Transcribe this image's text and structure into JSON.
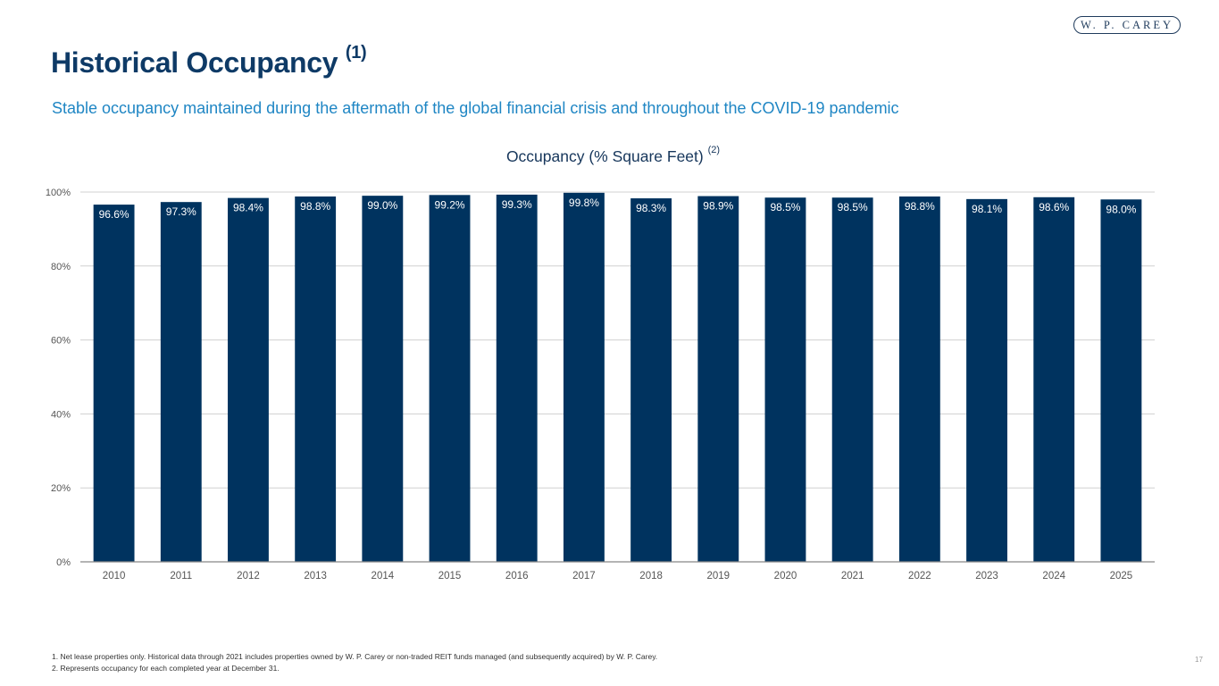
{
  "logo": {
    "text": "W. P. CAREY"
  },
  "header": {
    "title": "Historical Occupancy",
    "title_footnote": "(1)",
    "subtitle": "Stable occupancy maintained during the aftermath of the global financial crisis and throughout the COVID-19 pandemic"
  },
  "colors": {
    "bar": "#00335f",
    "title": "#0e3a66",
    "subtitle": "#1f86c4",
    "grid": "#d0d0d0",
    "axis": "#888888"
  },
  "chart_data": {
    "type": "bar",
    "title": "Occupancy (% Square Feet)",
    "title_footnote": "(2)",
    "xlabel": "",
    "ylabel": "",
    "categories": [
      "2010",
      "2011",
      "2012",
      "2013",
      "2014",
      "2015",
      "2016",
      "2017",
      "2018",
      "2019",
      "2020",
      "2021",
      "2022",
      "2023",
      "2024",
      "2025"
    ],
    "values": [
      96.6,
      97.3,
      98.4,
      98.8,
      99.0,
      99.2,
      99.3,
      99.8,
      98.3,
      98.9,
      98.5,
      98.5,
      98.8,
      98.1,
      98.6,
      98.0
    ],
    "data_labels": [
      "96.6%",
      "97.3%",
      "98.4%",
      "98.8%",
      "99.0%",
      "99.2%",
      "99.3%",
      "99.8%",
      "98.3%",
      "98.9%",
      "98.5%",
      "98.5%",
      "98.8%",
      "98.1%",
      "98.6%",
      "98.0%"
    ],
    "ylim": [
      0,
      100
    ],
    "yticks": [
      0,
      20,
      40,
      60,
      80,
      100
    ],
    "ytick_labels": [
      "0%",
      "20%",
      "40%",
      "60%",
      "80%",
      "100%"
    ],
    "grid": true,
    "legend": "none"
  },
  "footnotes": [
    "1.  Net lease properties only. Historical data through 2021 includes properties owned by W. P. Carey or non-traded REIT funds managed (and subsequently acquired) by W. P. Carey.",
    "2.  Represents occupancy for each completed year at December 31."
  ],
  "page_number": "17"
}
